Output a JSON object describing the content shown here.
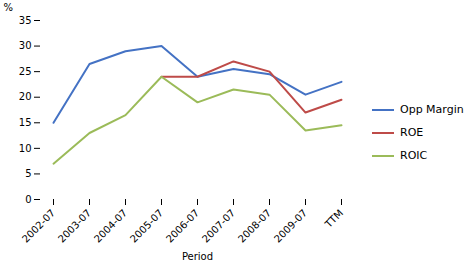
{
  "chart_data": {
    "type": "line",
    "categories": [
      "2002-07",
      "2003-07",
      "2004-07",
      "2005-07",
      "2006-07",
      "2007-07",
      "2008-07",
      "2009-07",
      "TTM"
    ],
    "series": [
      {
        "name": "Opp Margin",
        "color": "#4472C4",
        "values": [
          15,
          26.5,
          29,
          30,
          24,
          25.5,
          24.5,
          20.5,
          23
        ]
      },
      {
        "name": "ROE",
        "color": "#BE4B48",
        "values": [
          null,
          null,
          null,
          24,
          24,
          27,
          25,
          17,
          19.5
        ]
      },
      {
        "name": "ROIC",
        "color": "#9BBB59",
        "values": [
          7,
          13,
          16.5,
          24,
          19,
          21.5,
          20.5,
          13.5,
          14.5
        ]
      }
    ],
    "xlabel": "Period",
    "ylabel": "%",
    "ylim": [
      0,
      35
    ],
    "yticks": [
      0,
      5,
      10,
      15,
      20,
      25,
      30,
      35
    ],
    "legend": "right"
  }
}
